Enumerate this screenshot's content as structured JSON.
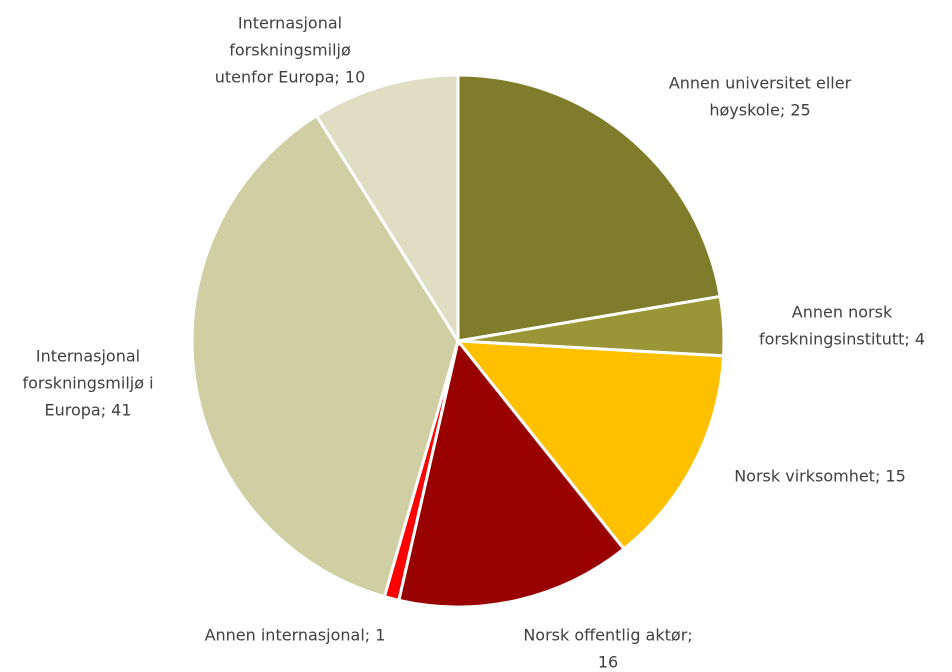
{
  "chart_data": {
    "type": "pie",
    "values": [
      25,
      4,
      15,
      16,
      1,
      41,
      10
    ],
    "value_labels": [
      [
        "Annen universitet eller",
        "høyskole; 25"
      ],
      [
        "Annen norsk",
        "forskningsinstitutt; 4"
      ],
      [
        "Norsk virksomhet; 15"
      ],
      [
        "Norsk offentlig aktør;",
        "16"
      ],
      [
        "Annen internasjonal; 1"
      ],
      [
        "Internasjonal",
        "forskningsmiljø i",
        "Europa; 41"
      ],
      [
        "Internasjonal",
        "forskningsmiljø",
        "utenfor Europa; 10"
      ]
    ],
    "colors": [
      "#7f7d2b",
      "#9a9536",
      "#ffc000",
      "#990000",
      "#ff0000",
      "#d0cfa3",
      "#dfdec3"
    ]
  }
}
